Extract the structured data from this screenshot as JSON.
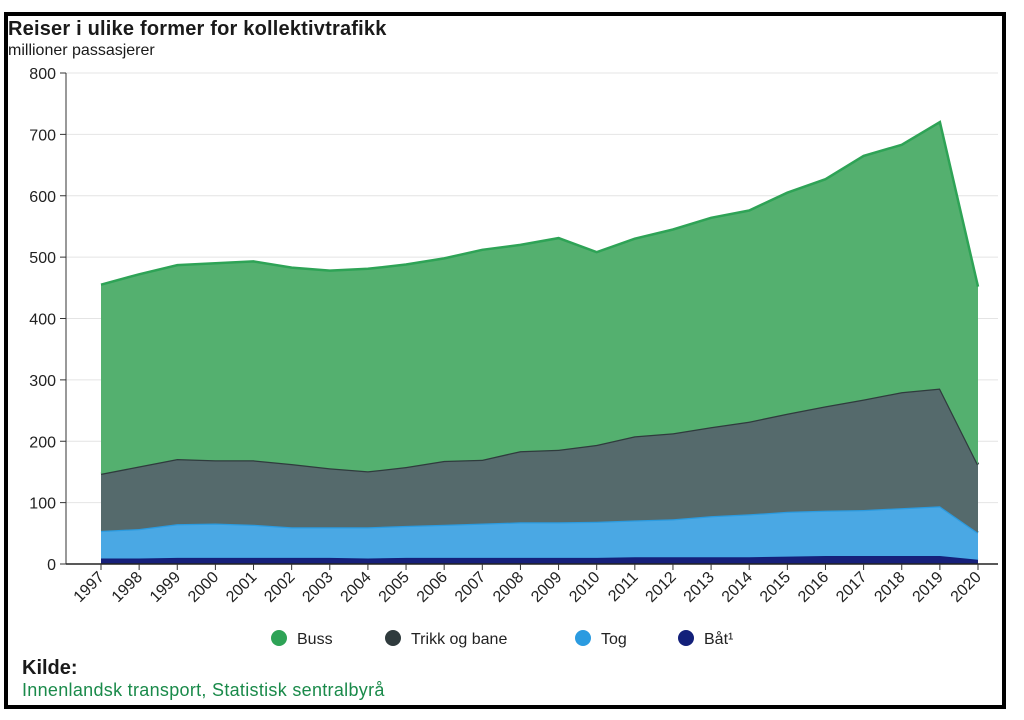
{
  "chart_data": {
    "type": "area",
    "stacked": true,
    "title": "Reiser i ulike former for kollektivtrafikk",
    "ylabel": "millioner passasjerer",
    "ylim": [
      0,
      800
    ],
    "yticks": [
      0,
      100,
      200,
      300,
      400,
      500,
      600,
      700,
      800
    ],
    "grid": true,
    "legend_position": "bottom",
    "x": [
      "1997",
      "1998",
      "1999",
      "2000",
      "2001",
      "2002",
      "2003",
      "2004",
      "2005",
      "2006",
      "2007",
      "2008",
      "2009",
      "2010",
      "2011",
      "2012",
      "2013",
      "2014",
      "2015",
      "2016",
      "2017",
      "2018",
      "2019",
      "2020"
    ],
    "series": [
      {
        "name": "Båt¹",
        "color": "#17207a",
        "values": [
          9,
          9,
          10,
          10,
          10,
          10,
          10,
          9,
          10,
          10,
          10,
          10,
          10,
          10,
          11,
          11,
          11,
          11,
          12,
          13,
          13,
          13,
          13,
          7
        ]
      },
      {
        "name": "Tog",
        "color": "#4aa8e4",
        "values": [
          45,
          48,
          55,
          56,
          54,
          50,
          50,
          51,
          52,
          54,
          56,
          58,
          58,
          59,
          60,
          62,
          67,
          70,
          73,
          74,
          75,
          78,
          81,
          44
        ]
      },
      {
        "name": "Trikk og bane",
        "color": "#556a6c",
        "values": [
          93,
          102,
          106,
          103,
          105,
          103,
          96,
          91,
          96,
          104,
          104,
          116,
          118,
          125,
          137,
          140,
          145,
          151,
          160,
          170,
          180,
          189,
          192,
          111
        ]
      },
      {
        "name": "Buss",
        "color": "#54b06f",
        "values": [
          308,
          313,
          316,
          321,
          324,
          320,
          322,
          330,
          330,
          330,
          342,
          336,
          345,
          314,
          322,
          332,
          341,
          344,
          360,
          370,
          397,
          403,
          434,
          290
        ]
      }
    ],
    "legend_order": [
      "Buss",
      "Trikk og bane",
      "Tog",
      "Båt¹"
    ],
    "legend_colors": {
      "Buss": "#2ea356",
      "Trikk og bane": "#2f3b3d",
      "Tog": "#2b9be0",
      "Båt¹": "#13207a"
    }
  },
  "source": {
    "label": "Kilde:",
    "text": "Innenlandsk transport, Statistisk sentralbyrå"
  }
}
